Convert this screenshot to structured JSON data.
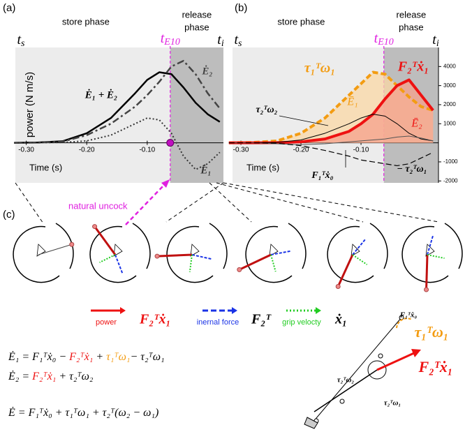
{
  "panel_labels": [
    "(a)",
    "(b)",
    "(c)"
  ],
  "chart_data": [
    {
      "type": "line",
      "store_label": "store phase",
      "release_label": [
        "release",
        "phase"
      ],
      "time_labels": [
        {
          "main": "t",
          "sub": "s"
        },
        {
          "main": "t",
          "sub": "E10"
        },
        {
          "main": "t",
          "sub": "i"
        }
      ],
      "ylabel": "power (N m/s)",
      "xlabel": "Time (s)",
      "x": [
        -0.32,
        -0.28,
        -0.24,
        -0.2,
        -0.16,
        -0.12,
        -0.1,
        -0.08,
        -0.06,
        -0.04,
        -0.02,
        0.0,
        0.02
      ],
      "xlim": [
        -0.318,
        0.026
      ],
      "ylim": [
        -2100,
        5000
      ],
      "xticks": [
        {
          "value": -0.3,
          "label": "-0.30"
        },
        {
          "value": -0.2,
          "label": "-0.20"
        },
        {
          "value": -0.1,
          "label": "-0.10"
        }
      ],
      "event_x": -0.062,
      "event_color": "#e020e0",
      "series": [
        {
          "name": "Ė₁ + Ė₂",
          "color": "#000000",
          "style": "solid",
          "width": 2.5,
          "values": [
            0,
            20,
            80,
            500,
            1300,
            2600,
            3300,
            3700,
            3600,
            2900,
            2100,
            1500,
            1100
          ]
        },
        {
          "name": "Ė₂",
          "color": "#444444",
          "style": "dashdot",
          "width": 2.5,
          "values": [
            0,
            10,
            60,
            400,
            1000,
            1900,
            2500,
            3200,
            4000,
            4300,
            3600,
            2600,
            1800
          ]
        },
        {
          "name": "Ė₁",
          "color": "#333333",
          "style": "dotted",
          "width": 2,
          "values": [
            0,
            10,
            20,
            100,
            400,
            1000,
            1300,
            1200,
            500,
            -700,
            -1400,
            -1100,
            -500
          ]
        }
      ]
    },
    {
      "type": "line",
      "store_label": "store phase",
      "release_label": [
        "release",
        "phase"
      ],
      "time_labels": [
        {
          "main": "t",
          "sub": "s"
        },
        {
          "main": "t",
          "sub": "E10"
        },
        {
          "main": "t",
          "sub": "i"
        }
      ],
      "xlabel": "Time (s)",
      "x": [
        -0.32,
        -0.28,
        -0.24,
        -0.2,
        -0.16,
        -0.12,
        -0.1,
        -0.08,
        -0.06,
        -0.04,
        -0.02,
        0.0,
        0.02
      ],
      "xlim": [
        -0.314,
        0.029
      ],
      "ylim": [
        -2100,
        5000
      ],
      "xticks": [
        {
          "value": -0.3,
          "label": "-0.30"
        },
        {
          "value": -0.2,
          "label": "-0.20"
        },
        {
          "value": -0.1,
          "label": "-0.10"
        }
      ],
      "yticks": [
        -2000,
        -1000,
        1000,
        2000,
        3000,
        4000
      ],
      "event_x": -0.062,
      "event_color": "#e020e0",
      "series": [
        {
          "name": "τ₁ᵀω₁",
          "color": "#f39c12",
          "fill": "#fbd8a6",
          "style": "dashed",
          "width": 4,
          "values": [
            0,
            20,
            100,
            500,
            1300,
            2500,
            3100,
            3700,
            3600,
            3000,
            2400,
            1900,
            1700
          ]
        },
        {
          "name": "F₂ᵀẋ₁",
          "color": "#ee1111",
          "fill": "#f5a08c",
          "style": "solid",
          "width": 4,
          "values": [
            0,
            0,
            10,
            50,
            200,
            600,
            1000,
            1500,
            2300,
            3000,
            3300,
            2500,
            1700
          ]
        },
        {
          "name": "τ₂ᵀω₂",
          "color": "#000000",
          "style": "solid",
          "width": 1,
          "values": [
            0,
            0,
            20,
            150,
            500,
            1000,
            1300,
            1500,
            1400,
            1000,
            500,
            200,
            100
          ]
        },
        {
          "name": "F₁ᵀẋ₀",
          "color": "#555555",
          "style": "solid",
          "width": 1,
          "values": [
            0,
            0,
            -50,
            -100,
            -50,
            50,
            100,
            150,
            200,
            300,
            350,
            250,
            100
          ]
        },
        {
          "name": "− τ₂ᵀω₁",
          "color": "#000000",
          "style": "dashed",
          "width": 1.2,
          "values": [
            0,
            0,
            -20,
            -150,
            -400,
            -700,
            -900,
            -1000,
            -1100,
            -1200,
            -1100,
            -800,
            -500
          ]
        }
      ],
      "annotations": [
        {
          "text": "Ē₁",
          "color": "#f39c12"
        },
        {
          "text": "Ē₂",
          "color": "#ee1111"
        }
      ]
    }
  ],
  "uncock_label": "natural uncock",
  "legend": [
    {
      "text": "power",
      "symbol": "F₂ᵀẋ₁",
      "color": "#ee1111",
      "style": "solid"
    },
    {
      "text": "inernal force",
      "symbol": "F₂ᵀ",
      "color": "#1a33e6",
      "style": "dashed"
    },
    {
      "text": "grip velocty",
      "symbol": "ẋ₁",
      "color": "#22cc22",
      "style": "dotted"
    }
  ],
  "equations": [
    [
      {
        "text": "Ė₁ = ",
        "color": "#000"
      },
      {
        "text": "F₁ᵀẋ₀ − ",
        "color": "#000"
      },
      {
        "text": "F₂ᵀẋ₁",
        "color": "#ee1111"
      },
      {
        "text": " + ",
        "color": "#000"
      },
      {
        "text": "τ₁ᵀω₁",
        "color": "#f39c12"
      },
      {
        "text": "− τ₂ᵀω₁",
        "color": "#000"
      }
    ],
    [
      {
        "text": "Ė₂ = ",
        "color": "#000"
      },
      {
        "text": "F₂ᵀẋ₁",
        "color": "#ee1111"
      },
      {
        "text": " + τ₂ᵀω₂",
        "color": "#000"
      }
    ],
    [
      {
        "text": "Ė = F₁ᵀẋ₀ + τ₁ᵀω₁ + τ₂ᵀ(ω₂ − ω₁)",
        "color": "#000"
      }
    ]
  ],
  "diagram_labels": [
    {
      "text": "F₁ᵀẋ₀",
      "color": "#000"
    },
    {
      "text": "τ₁ᵀω₁",
      "color": "#f39c12"
    },
    {
      "text": "F₂ᵀẋ₁",
      "color": "#ee1111"
    },
    {
      "text": "τ₂ᵀω₂",
      "color": "#000"
    },
    {
      "text": "τ₂ᵀω₁",
      "color": "#000"
    }
  ]
}
